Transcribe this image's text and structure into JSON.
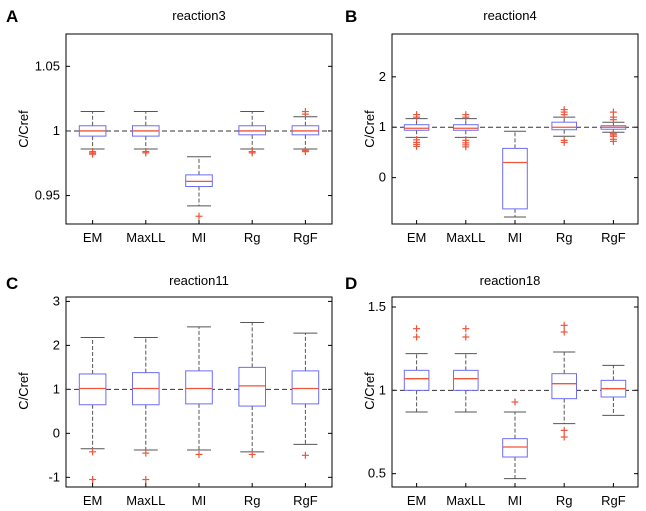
{
  "colors": {
    "box": "#6d6df5",
    "median": "#f2543a",
    "outlier": "#f2543a",
    "whisker": "#555555",
    "reference_line": "#333333",
    "axes": "#000000"
  },
  "chart_data": [
    {
      "letter": "A",
      "type": "boxplot",
      "title": "reaction3",
      "ylabel": "C/Cref",
      "categories": [
        "EM",
        "MaxLL",
        "MI",
        "Rg",
        "RgF"
      ],
      "ylim": [
        0.928,
        1.075
      ],
      "yticks": [
        0.95,
        1,
        1.05
      ],
      "ytick_labels": [
        "0.95",
        "1",
        "1.05"
      ],
      "reference": 1,
      "boxes": [
        {
          "whisker_low": 0.986,
          "q1": 0.996,
          "median": 1.0,
          "q3": 1.004,
          "whisker_high": 1.015,
          "outliers": [
            0.984,
            0.983,
            0.982
          ]
        },
        {
          "whisker_low": 0.986,
          "q1": 0.996,
          "median": 1.0,
          "q3": 1.004,
          "whisker_high": 1.015,
          "outliers": [
            0.984,
            0.983
          ]
        },
        {
          "whisker_low": 0.942,
          "q1": 0.957,
          "median": 0.961,
          "q3": 0.966,
          "whisker_high": 0.98,
          "outliers": [
            0.934
          ]
        },
        {
          "whisker_low": 0.986,
          "q1": 0.997,
          "median": 1.0,
          "q3": 1.004,
          "whisker_high": 1.015,
          "outliers": [
            0.984,
            0.983
          ]
        },
        {
          "whisker_low": 0.986,
          "q1": 0.997,
          "median": 1.0,
          "q3": 1.004,
          "whisker_high": 1.011,
          "outliers": [
            1.015,
            1.013,
            0.985,
            0.984
          ]
        }
      ]
    },
    {
      "letter": "B",
      "type": "boxplot",
      "title": "reaction4",
      "ylabel": "C/Cref",
      "categories": [
        "EM",
        "MaxLL",
        "MI",
        "Rg",
        "RgF"
      ],
      "ylim": [
        -0.92,
        2.85
      ],
      "yticks": [
        0,
        1,
        2
      ],
      "ytick_labels": [
        "0",
        "1",
        "2"
      ],
      "reference": 1,
      "boxes": [
        {
          "whisker_low": 0.8,
          "q1": 0.94,
          "median": 0.98,
          "q3": 1.05,
          "whisker_high": 1.17,
          "outliers": [
            1.25,
            1.2,
            0.75,
            0.7,
            0.66,
            0.62
          ]
        },
        {
          "whisker_low": 0.8,
          "q1": 0.94,
          "median": 0.98,
          "q3": 1.05,
          "whisker_high": 1.17,
          "outliers": [
            1.25,
            1.2,
            0.74,
            0.69,
            0.65,
            0.61
          ]
        },
        {
          "whisker_low": -0.78,
          "q1": -0.62,
          "median": 0.3,
          "q3": 0.58,
          "whisker_high": 0.92,
          "outliers": []
        },
        {
          "whisker_low": 0.82,
          "q1": 0.95,
          "median": 1.0,
          "q3": 1.1,
          "whisker_high": 1.2,
          "outliers": [
            1.35,
            1.3,
            1.25,
            0.74,
            0.7
          ]
        },
        {
          "whisker_low": 0.9,
          "q1": 0.96,
          "median": 1.0,
          "q3": 1.03,
          "whisker_high": 1.1,
          "outliers": [
            1.3,
            1.2,
            1.15,
            0.88,
            0.85,
            0.82,
            0.76,
            0.72
          ]
        }
      ]
    },
    {
      "letter": "C",
      "type": "boxplot",
      "title": "reaction11",
      "ylabel": "C/Cref",
      "categories": [
        "EM",
        "MaxLL",
        "MI",
        "Rg",
        "RgF"
      ],
      "ylim": [
        -1.22,
        3.1
      ],
      "yticks": [
        -1,
        0,
        1,
        2,
        3
      ],
      "ytick_labels": [
        "-1",
        "0",
        "1",
        "2",
        "3"
      ],
      "reference": 1,
      "boxes": [
        {
          "whisker_low": -0.35,
          "q1": 0.65,
          "median": 1.02,
          "q3": 1.35,
          "whisker_high": 2.18,
          "outliers": [
            -0.42,
            -1.05
          ]
        },
        {
          "whisker_low": -0.38,
          "q1": 0.65,
          "median": 1.02,
          "q3": 1.38,
          "whisker_high": 2.18,
          "outliers": [
            -0.45,
            -1.05
          ]
        },
        {
          "whisker_low": -0.38,
          "q1": 0.67,
          "median": 1.02,
          "q3": 1.42,
          "whisker_high": 2.42,
          "outliers": [
            -0.48
          ]
        },
        {
          "whisker_low": -0.42,
          "q1": 0.62,
          "median": 1.08,
          "q3": 1.5,
          "whisker_high": 2.52,
          "outliers": [
            -0.48
          ]
        },
        {
          "whisker_low": -0.25,
          "q1": 0.67,
          "median": 1.02,
          "q3": 1.42,
          "whisker_high": 2.28,
          "outliers": [
            -0.5
          ]
        }
      ]
    },
    {
      "letter": "D",
      "type": "boxplot",
      "title": "reaction18",
      "ylabel": "C/Cref",
      "categories": [
        "EM",
        "MaxLL",
        "MI",
        "Rg",
        "RgF"
      ],
      "ylim": [
        0.42,
        1.56
      ],
      "yticks": [
        0.5,
        1,
        1.5
      ],
      "ytick_labels": [
        "0.5",
        "1",
        "1.5"
      ],
      "reference": 1,
      "boxes": [
        {
          "whisker_low": 0.87,
          "q1": 1.0,
          "median": 1.07,
          "q3": 1.12,
          "whisker_high": 1.22,
          "outliers": [
            1.37,
            1.32
          ]
        },
        {
          "whisker_low": 0.87,
          "q1": 1.0,
          "median": 1.07,
          "q3": 1.12,
          "whisker_high": 1.22,
          "outliers": [
            1.37,
            1.32
          ]
        },
        {
          "whisker_low": 0.47,
          "q1": 0.6,
          "median": 0.66,
          "q3": 0.71,
          "whisker_high": 0.87,
          "outliers": [
            0.93
          ]
        },
        {
          "whisker_low": 0.8,
          "q1": 0.95,
          "median": 1.04,
          "q3": 1.1,
          "whisker_high": 1.23,
          "outliers": [
            1.39,
            1.35,
            0.76,
            0.72
          ]
        },
        {
          "whisker_low": 0.85,
          "q1": 0.96,
          "median": 1.01,
          "q3": 1.06,
          "whisker_high": 1.15,
          "outliers": []
        }
      ]
    }
  ]
}
